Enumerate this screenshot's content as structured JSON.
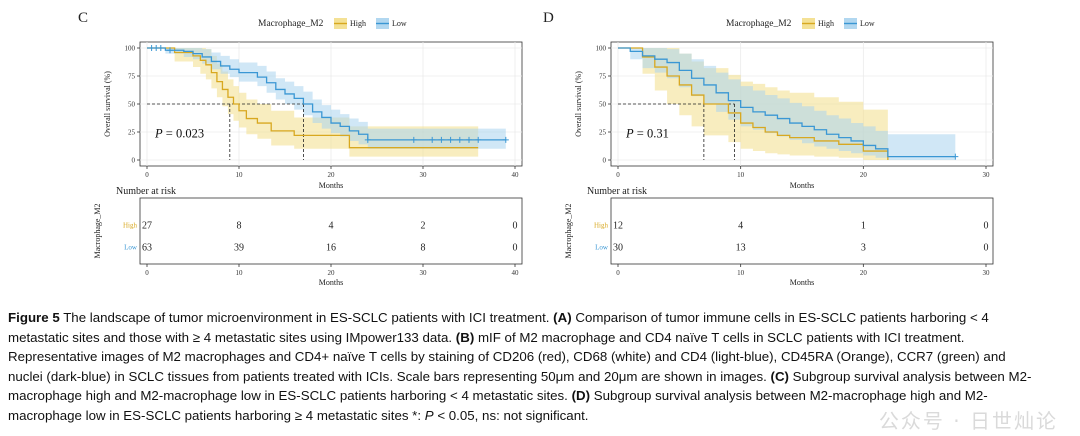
{
  "chart_data": [
    {
      "panel": "C",
      "type": "line",
      "chart_subtype": "kaplan-meier",
      "legend": {
        "title": "Macrophage_M2",
        "entries": [
          "High",
          "Low"
        ],
        "placement": "top"
      },
      "xlabel": "Months",
      "ylabel": "Overall survival (%)",
      "xlim": [
        0,
        40
      ],
      "ylim": [
        0,
        100
      ],
      "xticks": [
        "0",
        "10",
        "20",
        "30",
        "40"
      ],
      "yticks": [
        "0",
        "25",
        "50",
        "75",
        "100"
      ],
      "pvalue_label": "P",
      "pvalue": "= 0.023",
      "median_survival": {
        "High": 9,
        "Low": 17
      },
      "series": [
        {
          "name": "High",
          "color": "#d8a820",
          "band_color": "#f3de8a",
          "x": [
            0,
            1,
            3,
            4,
            5,
            5.8,
            6.4,
            7,
            7.6,
            8.2,
            8.8,
            9.4,
            10,
            10.8,
            12,
            13.5,
            16,
            17,
            19,
            20.5,
            22,
            36
          ],
          "y": [
            100,
            100,
            96,
            96,
            93,
            89,
            85,
            78,
            70,
            63,
            56,
            50,
            44,
            37,
            33,
            26,
            22,
            22,
            22,
            22,
            11,
            11
          ],
          "lower": [
            100,
            100,
            88,
            88,
            83,
            77,
            72,
            64,
            56,
            48,
            41,
            35,
            29,
            23,
            19,
            13,
            10,
            10,
            10,
            10,
            3,
            3
          ],
          "upper": [
            100,
            100,
            100,
            100,
            100,
            100,
            99,
            93,
            86,
            79,
            72,
            66,
            60,
            54,
            50,
            44,
            38,
            38,
            38,
            38,
            30,
            30
          ],
          "censor_x": []
        },
        {
          "name": "Low",
          "color": "#3a97d4",
          "band_color": "#a9d3ee",
          "x": [
            0,
            2,
            4,
            5,
            6,
            7,
            8,
            9,
            10,
            12,
            13,
            14,
            15,
            16,
            17,
            18,
            19,
            20,
            21,
            22,
            23,
            24,
            39
          ],
          "y": [
            100,
            98,
            97,
            95,
            92,
            88,
            84,
            81,
            78,
            74,
            69,
            63,
            59,
            55,
            50,
            43,
            38,
            33,
            30,
            26,
            23,
            18,
            18
          ],
          "lower": [
            100,
            95,
            92,
            90,
            86,
            81,
            77,
            74,
            70,
            66,
            60,
            54,
            50,
            45,
            40,
            33,
            28,
            24,
            21,
            17,
            14,
            10,
            10
          ],
          "upper": [
            100,
            100,
            100,
            100,
            99,
            96,
            93,
            90,
            87,
            84,
            79,
            73,
            70,
            66,
            61,
            54,
            49,
            45,
            41,
            37,
            34,
            28,
            28
          ],
          "censor_x": [
            0.5,
            1,
            1.5,
            2.5,
            24,
            29,
            31,
            32,
            33,
            34,
            35,
            36,
            39
          ]
        }
      ],
      "risk_table": {
        "title": "Number at risk",
        "ylabel": "Macrophage_M2",
        "xlabel": "Months",
        "times": [
          "0",
          "10",
          "20",
          "30",
          "40"
        ],
        "rows": [
          {
            "group": "High",
            "counts": [
              "27",
              "8",
              "4",
              "2",
              "0"
            ]
          },
          {
            "group": "Low",
            "counts": [
              "63",
              "39",
              "16",
              "8",
              "0"
            ]
          }
        ]
      }
    },
    {
      "panel": "D",
      "type": "line",
      "chart_subtype": "kaplan-meier",
      "legend": {
        "title": "Macrophage_M2",
        "entries": [
          "High",
          "Low"
        ],
        "placement": "top"
      },
      "xlabel": "Months",
      "ylabel": "Overall survival (%)",
      "xlim": [
        0,
        30
      ],
      "ylim": [
        0,
        100
      ],
      "xticks": [
        "0",
        "10",
        "20",
        "30"
      ],
      "yticks": [
        "0",
        "25",
        "50",
        "75",
        "100"
      ],
      "pvalue_label": "P",
      "pvalue": "= 0.31",
      "median_survival": {
        "High": 7,
        "Low": 9.5
      },
      "series": [
        {
          "name": "High",
          "color": "#d8a820",
          "band_color": "#f3de8a",
          "x": [
            0,
            2,
            3,
            4,
            5,
            6,
            7,
            8,
            9,
            10,
            11,
            12,
            13,
            14,
            16,
            18,
            20,
            21,
            22
          ],
          "y": [
            100,
            92,
            83,
            75,
            67,
            58,
            50,
            50,
            42,
            33,
            29,
            25,
            22,
            20,
            17,
            14,
            8,
            8,
            0
          ],
          "lower": [
            100,
            77,
            62,
            50,
            40,
            30,
            22,
            22,
            16,
            10,
            8,
            6,
            5,
            4,
            3,
            2,
            0,
            0,
            0
          ],
          "upper": [
            100,
            100,
            100,
            100,
            95,
            88,
            82,
            82,
            76,
            70,
            68,
            65,
            62,
            60,
            56,
            52,
            45,
            45,
            45
          ],
          "censor_x": []
        },
        {
          "name": "Low",
          "color": "#3a97d4",
          "band_color": "#a9d3ee",
          "x": [
            0,
            1,
            2,
            3,
            4,
            5,
            6,
            7,
            8,
            9,
            10,
            11,
            12,
            13,
            14,
            15,
            16,
            17,
            18,
            19,
            20,
            21,
            22,
            27.5
          ],
          "y": [
            100,
            97,
            93,
            90,
            87,
            80,
            73,
            67,
            60,
            53,
            47,
            43,
            40,
            37,
            33,
            30,
            27,
            23,
            20,
            17,
            13,
            10,
            3,
            3
          ],
          "lower": [
            100,
            90,
            82,
            78,
            73,
            65,
            57,
            50,
            43,
            36,
            30,
            27,
            24,
            21,
            18,
            15,
            12,
            10,
            8,
            6,
            4,
            2,
            0,
            0
          ],
          "upper": [
            100,
            100,
            100,
            100,
            99,
            95,
            90,
            84,
            78,
            72,
            66,
            62,
            58,
            55,
            51,
            48,
            44,
            40,
            37,
            33,
            30,
            26,
            23,
            23
          ],
          "censor_x": [
            27.5
          ]
        }
      ],
      "risk_table": {
        "title": "Number at risk",
        "ylabel": "Macrophage_M2",
        "xlabel": "Months",
        "times": [
          "0",
          "10",
          "20",
          "30"
        ],
        "rows": [
          {
            "group": "High",
            "counts": [
              "12",
              "4",
              "1",
              "0"
            ]
          },
          {
            "group": "Low",
            "counts": [
              "30",
              "13",
              "3",
              "0"
            ]
          }
        ]
      }
    }
  ],
  "caption": {
    "figure_label": "Figure 5",
    "text_1": " The landscape of tumor microenvironment in ES-SCLC patients with ICI treatment. ",
    "mark_a": "(A)",
    "text_2": " Comparison of tumor immune cells in ES-SCLC patients harboring < 4",
    "line_2": "metastatic sites and those with ≥ 4 metastatic sites using IMpower133 data. ",
    "mark_b": "(B)",
    "text_3": " mIF of M2 macrophage and CD4 naïve T cells in SCLC patients with ICI treatment.",
    "line_3": "Representative images of M2 macrophages and CD4+ naïve T cells by staining of CD206 (red), CD68 (white) and CD4 (light-blue), CD45RA (Orange), CCR7 (green) and",
    "line_4": "nuclei (dark-blue) in SCLC tissues from patients treated with ICIs. Scale bars representing 50μm and 20μm are shown in images. ",
    "mark_c": "(C)",
    "text_4": " Subgroup survival analysis between M2-",
    "line_5": "macrophage high and M2-macrophage low in ES-SCLC patients harboring < 4 metastatic sites. ",
    "mark_d": "(D)",
    "text_5": " Subgroup survival analysis between M2-macrophage high and M2-",
    "line_6": "macrophage low in ES-SCLC patients harboring ≥ 4 metastatic sites *: ",
    "p_italic": "P",
    "text_6": " < 0.05, ns: not significant."
  },
  "watermark": "公众号 · 日世灿论"
}
